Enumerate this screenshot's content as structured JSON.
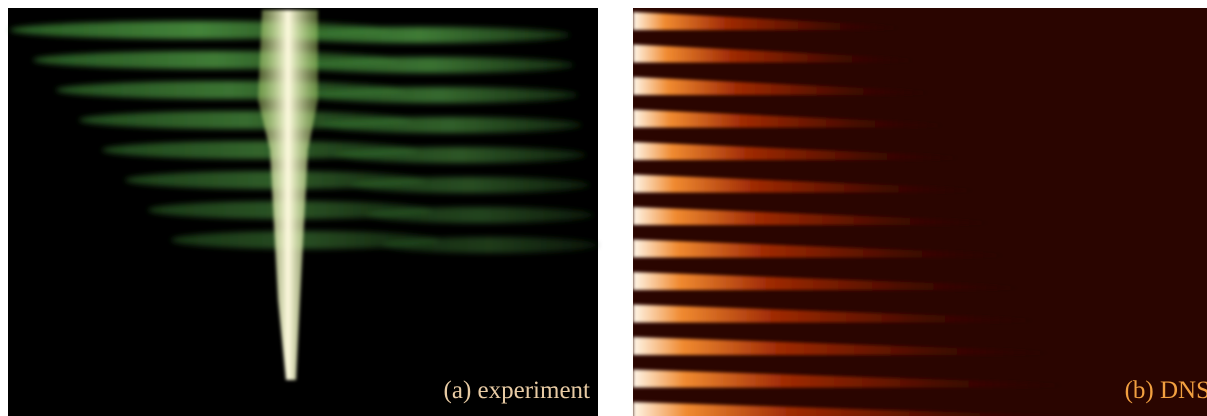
{
  "panels": [
    {
      "label": "(a) experiment"
    },
    {
      "label": "(b) DNS"
    }
  ]
}
